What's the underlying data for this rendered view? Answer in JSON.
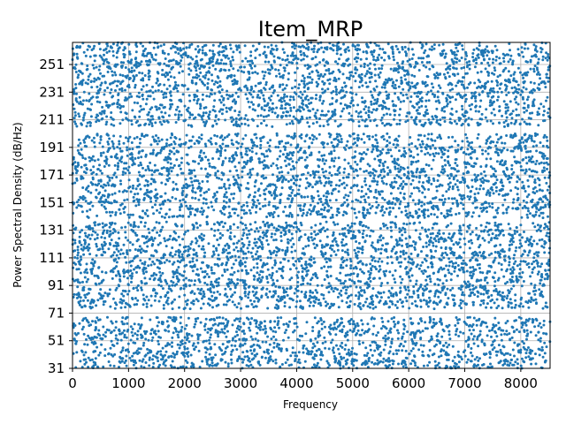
{
  "chart_data": {
    "type": "scatter",
    "title": "Item_MRP",
    "xlabel": "Frequency",
    "ylabel": "Power Spectral Density (dB/Hz)",
    "xlim": [
      0,
      8523
    ],
    "ylim": [
      31,
      267
    ],
    "xticks": [
      0,
      1000,
      2000,
      3000,
      4000,
      5000,
      6000,
      7000,
      8000
    ],
    "yticks": [
      31,
      51,
      71,
      91,
      111,
      131,
      151,
      171,
      191,
      211,
      231,
      251
    ],
    "grid": true,
    "marker_color": "#1f77b4",
    "n_points": 8523,
    "value_bands": [
      {
        "from": 31,
        "to": 68
      },
      {
        "from": 74,
        "to": 137
      },
      {
        "from": 140,
        "to": 201
      },
      {
        "from": 206,
        "to": 267
      }
    ]
  }
}
